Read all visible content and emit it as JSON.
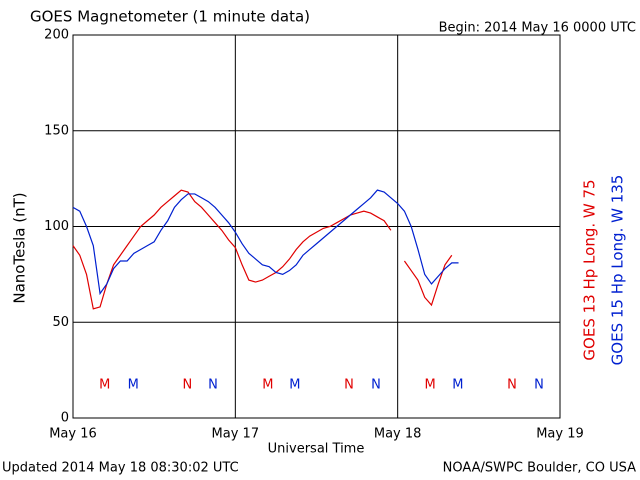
{
  "chart_data": {
    "type": "line",
    "title": "GOES Magnetometer (1 minute data)",
    "subtitle": "Begin:  2014 May 16 0000 UTC",
    "footer_left": "Updated 2014 May 18 08:30:02 UTC",
    "footer_right": "NOAA/SWPC Boulder, CO USA",
    "x_label": "Universal Time",
    "y_label": "NanoTesla (nT)",
    "x": [
      0,
      1,
      2,
      3,
      4,
      5,
      6,
      7,
      8,
      9,
      10,
      11,
      12,
      13,
      14,
      15,
      16,
      17,
      18,
      19,
      20,
      21,
      22,
      23,
      24,
      25,
      26,
      27,
      28,
      29,
      30,
      31,
      32,
      33,
      34,
      35,
      36,
      37,
      38,
      39,
      40,
      41,
      42,
      43,
      44,
      45,
      46,
      47,
      48,
      49,
      50,
      51,
      52,
      53,
      54,
      55,
      56,
      57
    ],
    "xlim": [
      0,
      72
    ],
    "xticks": [
      {
        "value": 0,
        "label": "May 16"
      },
      {
        "value": 24,
        "label": "May 17"
      },
      {
        "value": 48,
        "label": "May 18"
      },
      {
        "value": 72,
        "label": "May 19"
      }
    ],
    "ylim": [
      0,
      200
    ],
    "yticks": [
      0,
      50,
      100,
      150,
      200
    ],
    "grid": true,
    "series": [
      {
        "name": "GOES 13 Hp  Long. W 75",
        "color": "#e00000",
        "values": [
          90,
          85,
          75,
          57,
          58,
          70,
          80,
          85,
          90,
          95,
          100,
          103,
          106,
          110,
          113,
          116,
          119,
          118,
          113,
          110,
          106,
          102,
          98,
          93,
          89,
          80,
          72,
          71,
          72,
          74,
          76,
          79,
          83,
          88,
          92,
          95,
          97,
          99,
          100,
          102,
          104,
          106,
          107,
          108,
          107,
          105,
          103,
          98,
          null,
          82,
          77,
          72,
          63,
          59,
          70,
          80,
          85,
          null
        ]
      },
      {
        "name": "GOES 15 Hp  Long. W 135",
        "color": "#0020d0",
        "values": [
          110,
          108,
          100,
          90,
          65,
          70,
          78,
          82,
          82,
          86,
          88,
          90,
          92,
          98,
          103,
          110,
          114,
          117,
          117,
          115,
          113,
          110,
          106,
          102,
          97,
          91,
          86,
          83,
          80,
          79,
          76,
          75,
          77,
          80,
          85,
          88,
          91,
          94,
          97,
          100,
          103,
          106,
          109,
          112,
          115,
          119,
          118,
          115,
          112,
          108,
          100,
          88,
          75,
          70,
          74,
          78,
          81,
          81
        ]
      }
    ],
    "markers": [
      {
        "label": "M",
        "x": 4.7,
        "color": "#e00000"
      },
      {
        "label": "M",
        "x": 8.9,
        "color": "#0020d0"
      },
      {
        "label": "N",
        "x": 16.9,
        "color": "#e00000"
      },
      {
        "label": "N",
        "x": 20.7,
        "color": "#0020d0"
      },
      {
        "label": "M",
        "x": 28.8,
        "color": "#e00000"
      },
      {
        "label": "M",
        "x": 32.8,
        "color": "#0020d0"
      },
      {
        "label": "N",
        "x": 40.8,
        "color": "#e00000"
      },
      {
        "label": "N",
        "x": 44.8,
        "color": "#0020d0"
      },
      {
        "label": "M",
        "x": 52.8,
        "color": "#e00000"
      },
      {
        "label": "M",
        "x": 56.9,
        "color": "#0020d0"
      },
      {
        "label": "N",
        "x": 64.9,
        "color": "#e00000"
      },
      {
        "label": "N",
        "x": 68.9,
        "color": "#0020d0"
      }
    ]
  }
}
